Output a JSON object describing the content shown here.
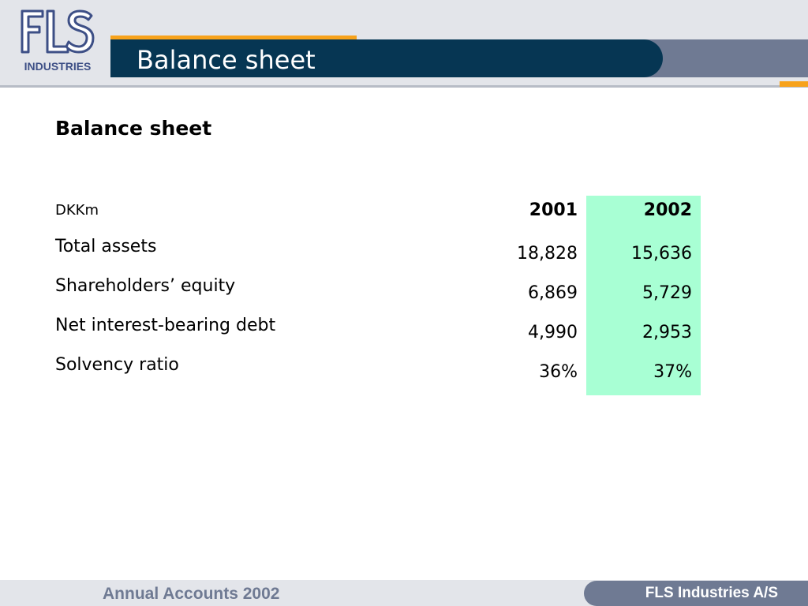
{
  "header": {
    "logo_text": "FLS",
    "logo_subtext": "INDUSTRIES",
    "title": "Balance sheet"
  },
  "main": {
    "section_title": "Balance sheet",
    "unit_label": "DKKm",
    "years": [
      "2001",
      "2002"
    ],
    "rows": [
      {
        "label": "Total assets",
        "values": [
          "18,828",
          "15,636"
        ]
      },
      {
        "label": "Shareholders’ equity",
        "values": [
          "6,869",
          "5,729"
        ]
      },
      {
        "label": "Net interest-bearing debt",
        "values": [
          "4,990",
          "2,953"
        ]
      },
      {
        "label": "Solvency ratio",
        "values": [
          "36%",
          "37%"
        ]
      }
    ],
    "highlight_color": "#a8ffd4"
  },
  "footer": {
    "left_text": "Annual Accounts 2002",
    "right_text": "FLS Industries A/S"
  },
  "colors": {
    "navy": "#063653",
    "orange": "#f7a21b",
    "slate": "#6f7a93",
    "band": "#e3e5ea"
  }
}
